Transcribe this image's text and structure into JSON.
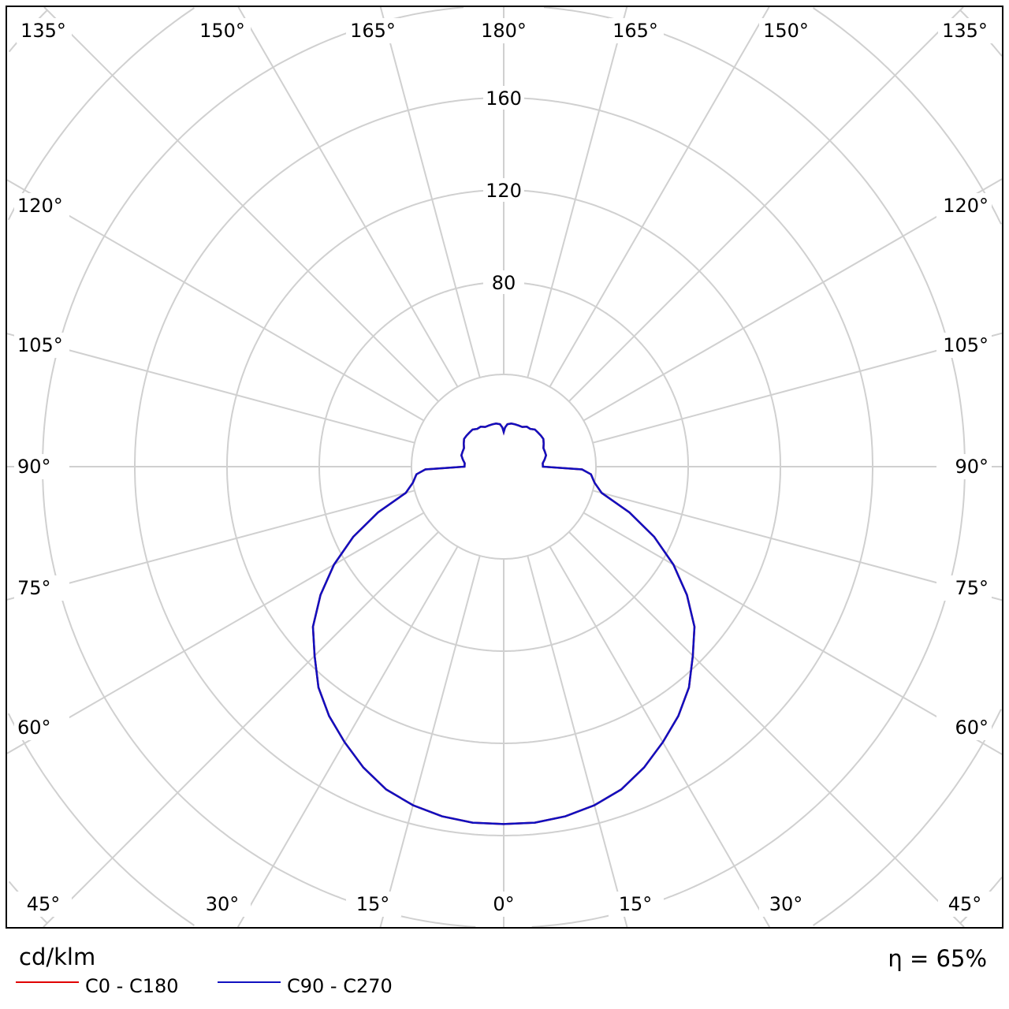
{
  "chart_data": {
    "type": "polar",
    "unit_label": "cd/klm",
    "efficiency_label": "η = 65%",
    "radial_ticks": [
      80,
      120,
      160
    ],
    "radial_range": [
      0,
      240
    ],
    "radial_step": 40,
    "angle_labels": {
      "top": [
        "135°",
        "150°",
        "165°",
        "180°",
        "165°",
        "150°",
        "135°"
      ],
      "left": [
        "120°",
        "105°",
        "90°",
        "75°",
        "60°"
      ],
      "right": [
        "120°",
        "105°",
        "90°",
        "75°",
        "60°"
      ],
      "bottom": [
        "45°",
        "30°",
        "15°",
        "0°",
        "15°",
        "30°",
        "45°"
      ]
    },
    "grid": true,
    "legend_position": "bottom-left",
    "series": [
      {
        "name": "C0 - C180",
        "color": "#e00000",
        "gamma": [
          0,
          5,
          10,
          15,
          20,
          25,
          30,
          35,
          40,
          45,
          50,
          55,
          60,
          65,
          70,
          75,
          80,
          85,
          88,
          90,
          95,
          100,
          105,
          110,
          115,
          120,
          125,
          130,
          135,
          140,
          145,
          150,
          155,
          160,
          165,
          170,
          175,
          178,
          180
        ],
        "values": [
          155,
          155,
          154,
          152,
          149,
          144,
          138,
          132,
          125,
          116,
          108,
          97,
          85,
          72,
          58,
          44,
          40,
          38,
          34,
          17,
          17,
          18,
          19,
          19,
          19,
          20,
          21,
          21,
          21,
          21,
          20,
          20,
          19,
          19,
          19,
          19,
          18.5,
          17,
          15
        ]
      },
      {
        "name": "C90 - C270",
        "color": "#1010c0",
        "gamma": [
          0,
          5,
          10,
          15,
          20,
          25,
          30,
          35,
          40,
          45,
          50,
          55,
          60,
          65,
          70,
          75,
          80,
          85,
          88,
          90,
          95,
          100,
          105,
          110,
          115,
          120,
          125,
          130,
          135,
          140,
          145,
          150,
          155,
          160,
          165,
          170,
          175,
          178,
          180
        ],
        "values": [
          155,
          155,
          154,
          152,
          149,
          144,
          138,
          132,
          125,
          116,
          108,
          97,
          85,
          72,
          58,
          44,
          40,
          38,
          34,
          17,
          17,
          18,
          19,
          19,
          19,
          20,
          21,
          21,
          21,
          21,
          20,
          20,
          19,
          19,
          19,
          19,
          18.5,
          17,
          15
        ]
      }
    ]
  }
}
